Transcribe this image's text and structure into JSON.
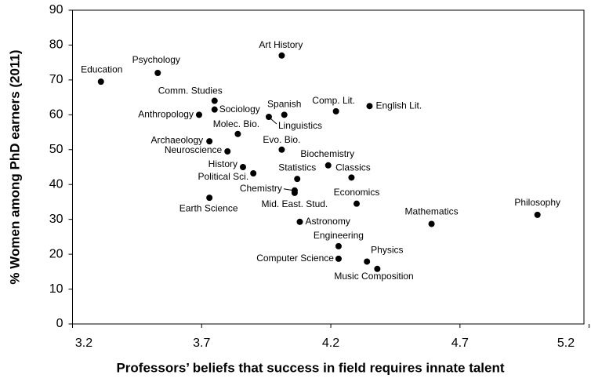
{
  "chart_data": {
    "type": "scatter",
    "x_label": "Professors’ beliefs that success in field requires innate talent",
    "y_label": "% Women among PhD earners (2011)",
    "color": "#000000",
    "xlim": [
      3.2,
      5.18
    ],
    "xticks": [
      {
        "value": 3.2,
        "label": "3.2"
      },
      3.7,
      4.2,
      4.7,
      5.2
    ],
    "ylim": [
      0,
      90
    ],
    "yticks": [
      0,
      10,
      20,
      30,
      40,
      50,
      60,
      70,
      80,
      90
    ],
    "points": [
      "Education",
      "Psychology",
      "Art History",
      "Comm. Studies",
      "Sociology",
      "Anthropology",
      "Spanish",
      "Linguistics",
      "Comp. Lit.",
      "English Lit.",
      "Molec. Bio.",
      "Archaeology",
      "Evo. Bio.",
      "Neuroscience",
      "Biochemistry",
      "History",
      "Political Sci.",
      "Statistics",
      "Classics",
      "Chemistry",
      "Mid. East. Stud.",
      "Earth Science",
      "Economics",
      "Philosophy",
      "Mathematics",
      "Astronomy",
      "Engineering",
      "Computer Science",
      "Physics",
      "Music Composition"
    ],
    "x": [
      3.31,
      3.53,
      4.01,
      3.75,
      3.75,
      3.69,
      4.02,
      3.96,
      4.22,
      4.35,
      3.84,
      3.73,
      4.01,
      3.8,
      4.19,
      3.86,
      3.9,
      4.07,
      4.28,
      4.06,
      4.06,
      3.73,
      4.3,
      5.0,
      4.59,
      4.08,
      4.23,
      4.23,
      4.34,
      4.38
    ],
    "y": [
      69.5,
      72,
      77,
      64,
      61.5,
      60,
      60,
      59.4,
      61,
      62.5,
      54.5,
      52.4,
      50,
      49.5,
      45.5,
      45,
      43.2,
      41.6,
      42,
      38.3,
      37.6,
      36.2,
      34.5,
      31.3,
      28.7,
      29.3,
      22.3,
      18.7,
      17.9,
      15.8
    ]
  }
}
